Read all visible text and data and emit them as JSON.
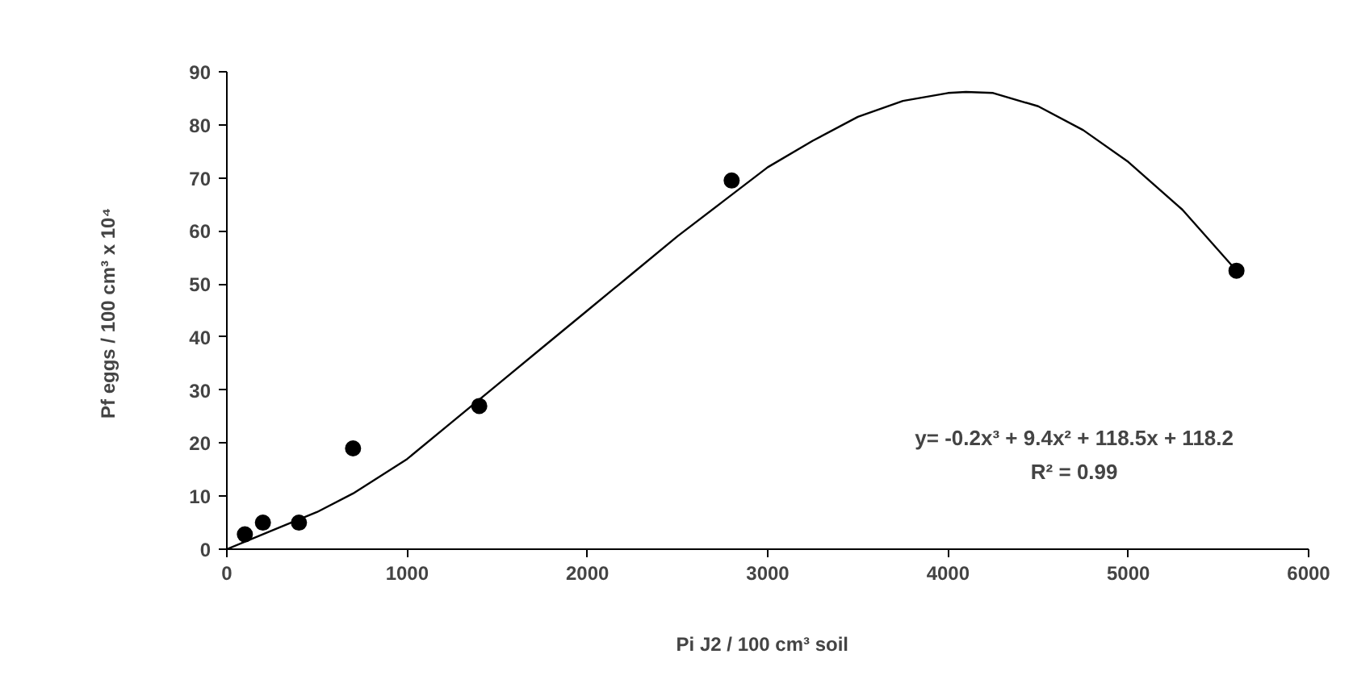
{
  "chart_data": {
    "type": "scatter",
    "xlabel": "Pi  J2 / 100 cm³  soil",
    "ylabel": "Pf  eggs / 100 cm³ x 10⁴",
    "xlim": [
      0,
      6000
    ],
    "ylim": [
      0,
      90
    ],
    "xticks": [
      0,
      1000,
      2000,
      3000,
      4000,
      5000,
      6000
    ],
    "yticks": [
      0,
      10,
      20,
      30,
      40,
      50,
      60,
      70,
      80,
      90
    ],
    "grid": false,
    "series": [
      {
        "color": "#000000",
        "marker": "circle",
        "x": [
          100,
          200,
          400,
          700,
          1400,
          2800,
          5600
        ],
        "values": [
          2.8,
          5,
          5,
          19,
          27,
          69.5,
          52.5
        ]
      },
      {
        "type": "line",
        "color": "#000000",
        "line_style": "solid",
        "x": [
          0,
          250,
          500,
          700,
          1000,
          1250,
          1500,
          1750,
          2000,
          2250,
          2500,
          2750,
          3000,
          3250,
          3500,
          3750,
          4000,
          4100,
          4250,
          4500,
          4750,
          5000,
          5300,
          5600
        ],
        "values": [
          0,
          3.5,
          7,
          10.5,
          17,
          24,
          31,
          38,
          45,
          52,
          59,
          65.5,
          72,
          77,
          81.5,
          84.5,
          86,
          86.2,
          86,
          83.5,
          79,
          73,
          64,
          52.5
        ]
      }
    ],
    "annotations": [
      "y= -0.2x³ + 9.4x² + 118.5x + 118.2",
      "R² = 0.99"
    ]
  }
}
